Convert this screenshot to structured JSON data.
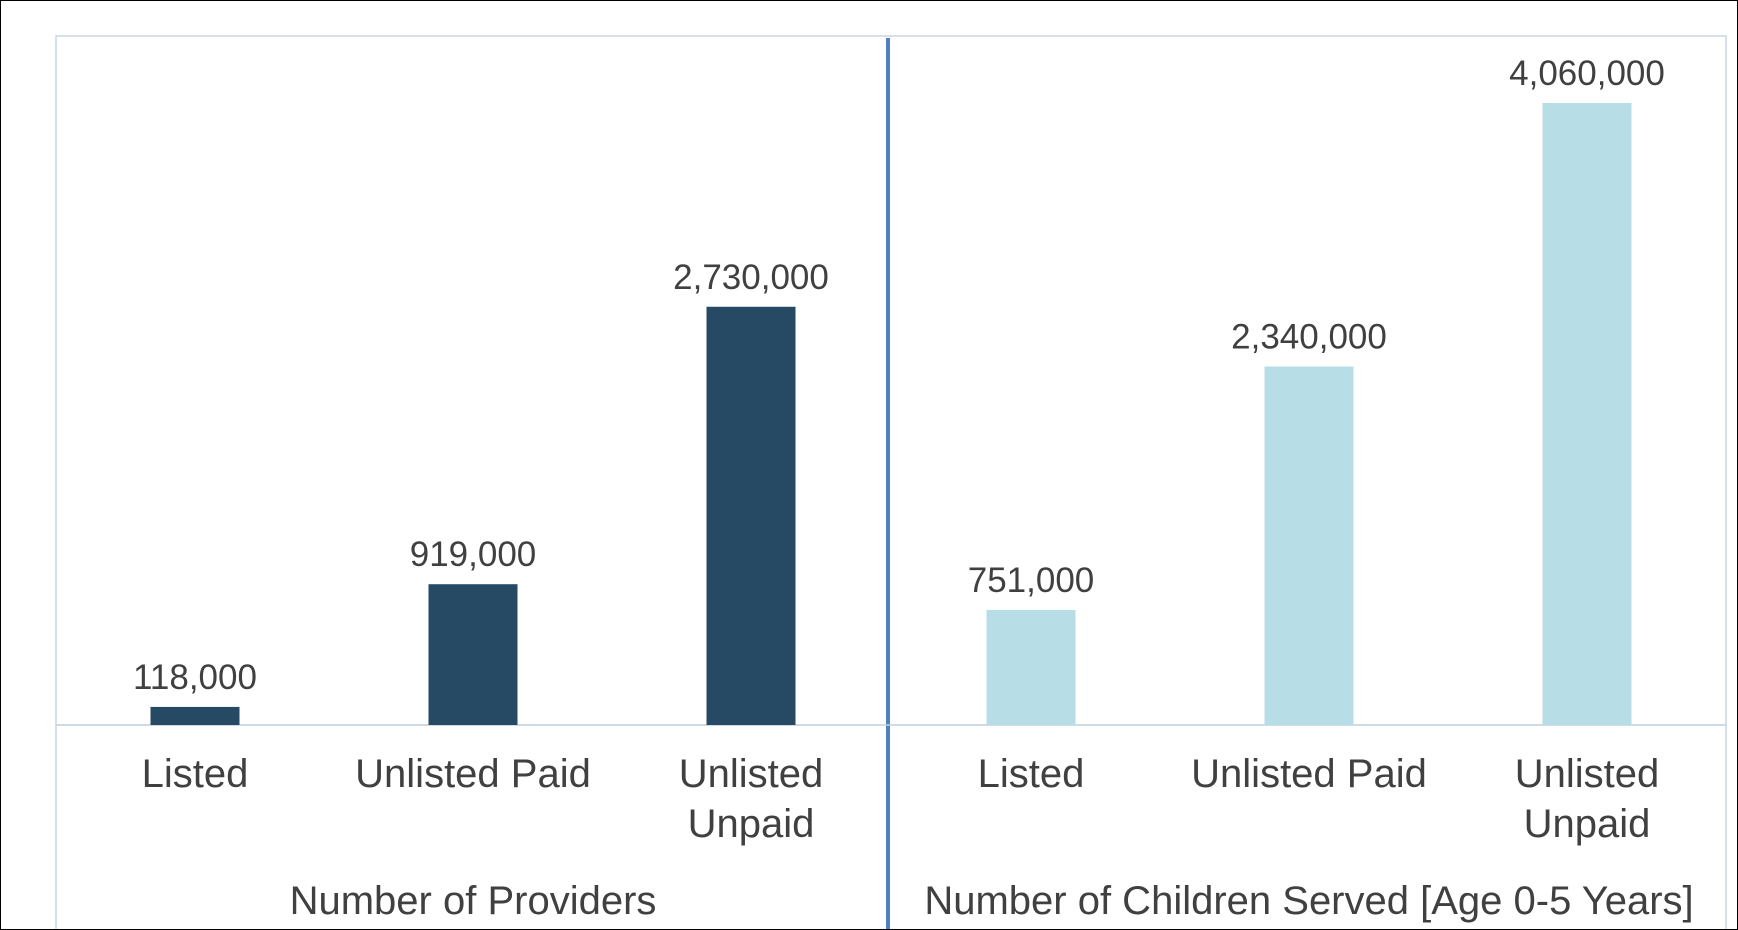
{
  "chart_data": {
    "type": "bar",
    "groups": [
      {
        "name": "Number of Providers",
        "color": "#264a63",
        "categories": [
          "Listed",
          "Unlisted Paid",
          "Unlisted Unpaid"
        ],
        "values": [
          118000,
          919000,
          2730000
        ],
        "value_labels": [
          "118,000",
          "919,000",
          "2,730,000"
        ]
      },
      {
        "name": "Number of Children Served [Age 0-5 Years]",
        "color": "#b7dde7",
        "categories": [
          "Listed",
          "Unlisted Paid",
          "Unlisted Unpaid"
        ],
        "values": [
          751000,
          2340000,
          4060000
        ],
        "value_labels": [
          "751,000",
          "2,340,000",
          "4,060,000"
        ]
      }
    ]
  }
}
